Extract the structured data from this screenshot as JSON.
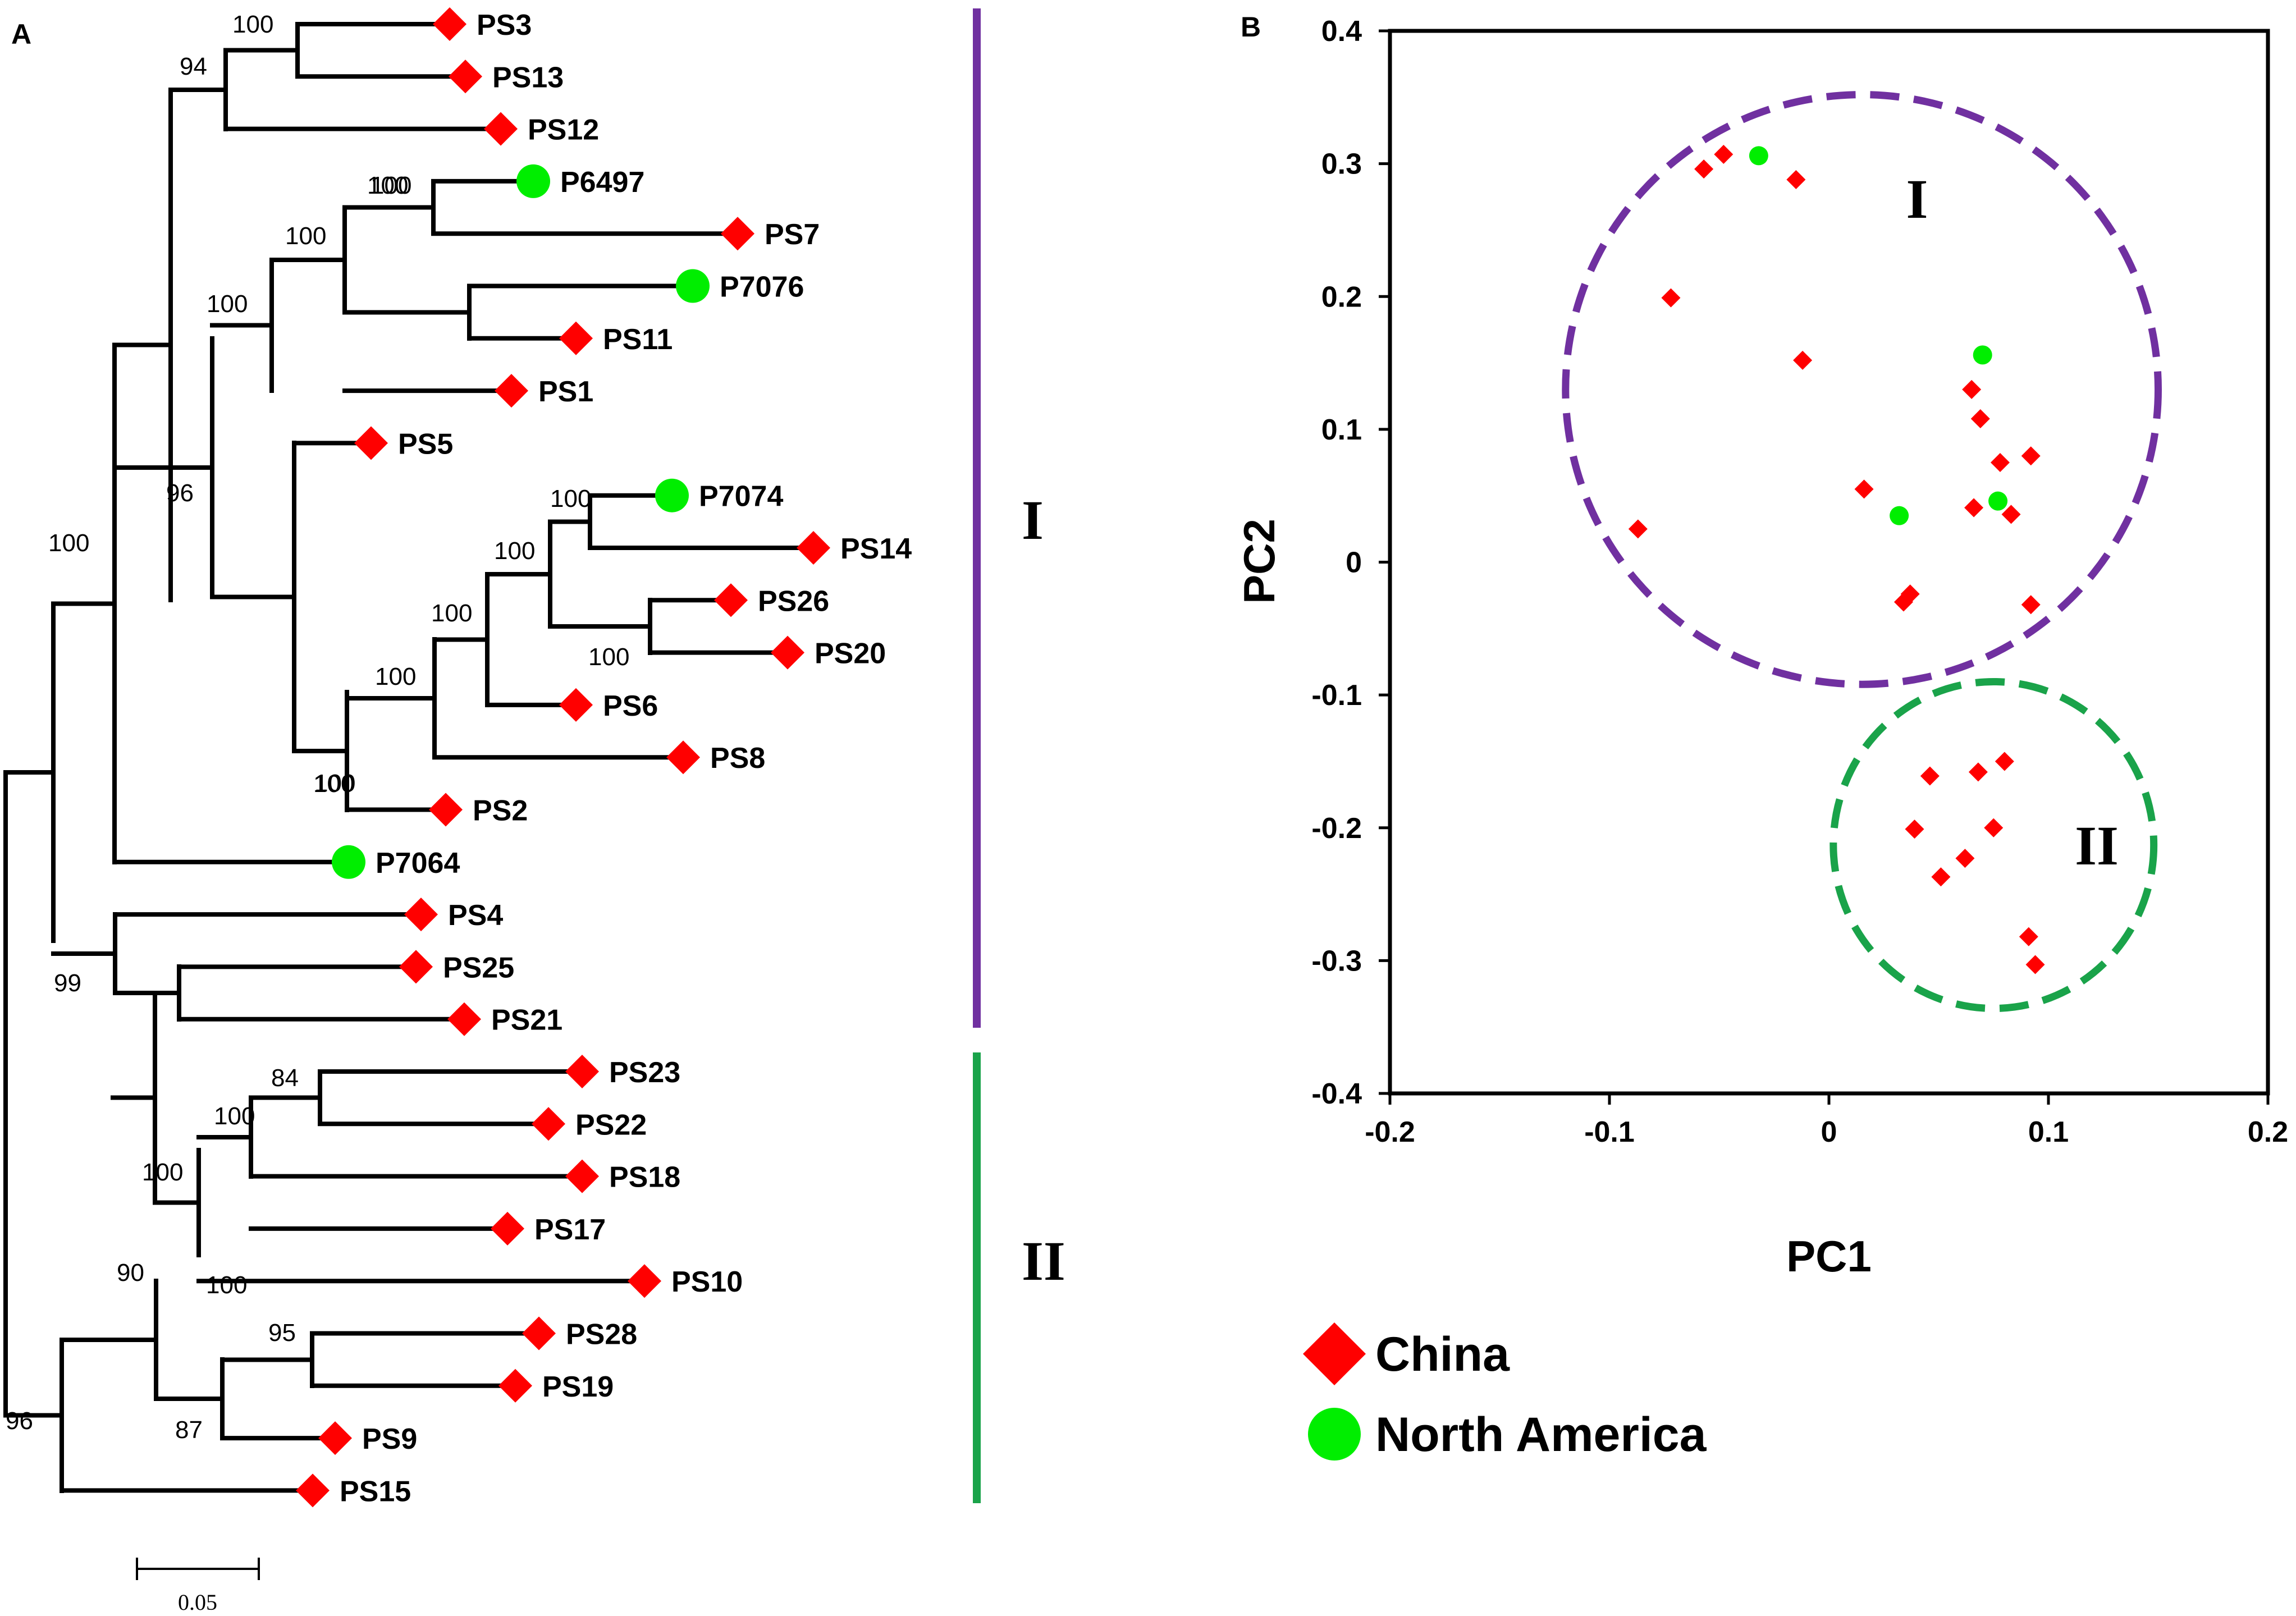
{
  "panels": {
    "a": "A",
    "b": "B"
  },
  "colors": {
    "china": "#ff0000",
    "north_america": "#00ee00",
    "clade1": "#7030a0",
    "clade2": "#1aa34a",
    "branch": "#000000"
  },
  "legend": [
    {
      "key": "china",
      "label": "China",
      "marker": "diamond"
    },
    {
      "key": "na",
      "label": "North America",
      "marker": "circle"
    }
  ],
  "tree": {
    "scale_bar_label": "0.05",
    "clade_labels": [
      "I",
      "II"
    ],
    "tips": [
      {
        "name": "PS3",
        "origin": "china"
      },
      {
        "name": "PS13",
        "origin": "china"
      },
      {
        "name": "PS12",
        "origin": "china"
      },
      {
        "name": "P6497",
        "origin": "na"
      },
      {
        "name": "PS7",
        "origin": "china"
      },
      {
        "name": "P7076",
        "origin": "na"
      },
      {
        "name": "PS11",
        "origin": "china"
      },
      {
        "name": "PS1",
        "origin": "china"
      },
      {
        "name": "PS5",
        "origin": "china"
      },
      {
        "name": "P7074",
        "origin": "na"
      },
      {
        "name": "PS14",
        "origin": "china"
      },
      {
        "name": "PS26",
        "origin": "china"
      },
      {
        "name": "PS20",
        "origin": "china"
      },
      {
        "name": "PS6",
        "origin": "china"
      },
      {
        "name": "PS8",
        "origin": "china"
      },
      {
        "name": "PS2",
        "origin": "china"
      },
      {
        "name": "P7064",
        "origin": "na"
      },
      {
        "name": "PS4",
        "origin": "china"
      },
      {
        "name": "PS25",
        "origin": "china"
      },
      {
        "name": "PS21",
        "origin": "china"
      },
      {
        "name": "PS23",
        "origin": "china"
      },
      {
        "name": "PS22",
        "origin": "china"
      },
      {
        "name": "PS18",
        "origin": "china"
      },
      {
        "name": "PS17",
        "origin": "china"
      },
      {
        "name": "PS10",
        "origin": "china"
      },
      {
        "name": "PS28",
        "origin": "china"
      },
      {
        "name": "PS19",
        "origin": "china"
      },
      {
        "name": "PS9",
        "origin": "china"
      },
      {
        "name": "PS15",
        "origin": "china"
      }
    ],
    "bootstrap": [
      "100",
      "94",
      "100",
      "100",
      "100",
      "100",
      "96",
      "100",
      "100",
      "100",
      "100",
      "100",
      "100",
      "100",
      "100",
      "99",
      "84",
      "100",
      "100",
      "100",
      "90",
      "95",
      "87",
      "96"
    ]
  },
  "chart_data": {
    "type": "scatter",
    "xlabel": "PC1",
    "ylabel": "PC2",
    "xlim": [
      -0.2,
      0.2
    ],
    "ylim": [
      -0.4,
      0.4
    ],
    "xticks": [
      "-0.2",
      "-0.1",
      "0",
      "0.1",
      "0.2"
    ],
    "yticks": [
      "-0.4",
      "-0.3",
      "-0.2",
      "-0.1",
      "0",
      "0.1",
      "0.2",
      "0.3",
      "0.4"
    ],
    "clusters": [
      {
        "label": "I",
        "center": [
          0.015,
          0.13
        ],
        "radius_pc1": 0.135,
        "radius_pc2": 0.222
      },
      {
        "label": "II",
        "center": [
          0.075,
          -0.213
        ],
        "radius_pc1": 0.073,
        "radius_pc2": 0.123
      }
    ],
    "series": [
      {
        "name": "China",
        "points": [
          [
            -0.048,
            0.307
          ],
          [
            -0.057,
            0.296
          ],
          [
            -0.015,
            0.288
          ],
          [
            -0.072,
            0.199
          ],
          [
            -0.012,
            0.152
          ],
          [
            0.065,
            0.13
          ],
          [
            0.069,
            0.108
          ],
          [
            0.078,
            0.075
          ],
          [
            0.092,
            0.08
          ],
          [
            0.016,
            0.055
          ],
          [
            0.066,
            0.041
          ],
          [
            0.083,
            0.036
          ],
          [
            -0.087,
            0.025
          ],
          [
            0.034,
            -0.03
          ],
          [
            0.037,
            -0.024
          ],
          [
            0.092,
            -0.032
          ],
          [
            0.046,
            -0.161
          ],
          [
            0.068,
            -0.158
          ],
          [
            0.08,
            -0.15
          ],
          [
            0.039,
            -0.201
          ],
          [
            0.075,
            -0.2
          ],
          [
            0.062,
            -0.223
          ],
          [
            0.051,
            -0.237
          ],
          [
            0.091,
            -0.282
          ],
          [
            0.094,
            -0.303
          ]
        ]
      },
      {
        "name": "North America",
        "points": [
          [
            -0.032,
            0.306
          ],
          [
            0.07,
            0.156
          ],
          [
            0.077,
            0.046
          ],
          [
            0.032,
            0.035
          ]
        ]
      }
    ]
  }
}
